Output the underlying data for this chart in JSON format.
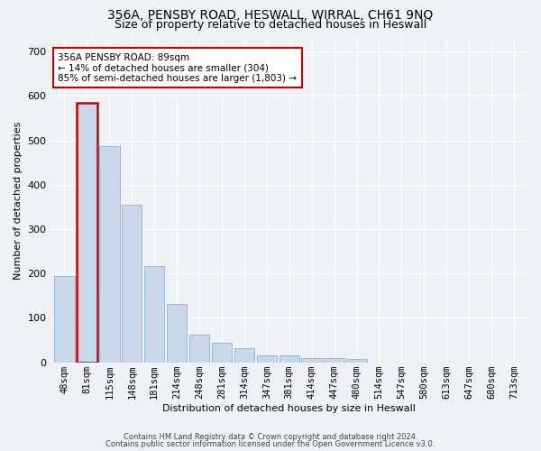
{
  "title": "356A, PENSBY ROAD, HESWALL, WIRRAL, CH61 9NQ",
  "subtitle": "Size of property relative to detached houses in Heswall",
  "xlabel": "Distribution of detached houses by size in Heswall",
  "ylabel": "Number of detached properties",
  "bar_color": "#c8d8ea",
  "bar_edge_color": "#7aaac8",
  "highlight_bar_index": 1,
  "highlight_bar_color": "#cc0000",
  "categories": [
    "48sqm",
    "81sqm",
    "115sqm",
    "148sqm",
    "181sqm",
    "214sqm",
    "248sqm",
    "281sqm",
    "314sqm",
    "347sqm",
    "381sqm",
    "414sqm",
    "447sqm",
    "480sqm",
    "514sqm",
    "547sqm",
    "580sqm",
    "613sqm",
    "647sqm",
    "680sqm",
    "713sqm"
  ],
  "values": [
    195,
    585,
    487,
    355,
    217,
    132,
    63,
    44,
    31,
    16,
    15,
    9,
    10,
    8,
    0,
    0,
    0,
    0,
    0,
    0,
    0
  ],
  "ylim": [
    0,
    730
  ],
  "yticks": [
    0,
    100,
    200,
    300,
    400,
    500,
    600,
    700
  ],
  "annotation_text": "356A PENSBY ROAD: 89sqm\n← 14% of detached houses are smaller (304)\n85% of semi-detached houses are larger (1,803) →",
  "footnote1": "Contains HM Land Registry data © Crown copyright and database right 2024.",
  "footnote2": "Contains public sector information licensed under the Open Government Licence v3.0.",
  "background_color": "#eef2f7",
  "grid_color": "#ffffff",
  "title_fontsize": 10,
  "subtitle_fontsize": 9,
  "ylabel_fontsize": 8,
  "xlabel_fontsize": 8,
  "tick_fontsize": 7.5,
  "ytick_fontsize": 8,
  "annot_fontsize": 7.5,
  "footnote_fontsize": 6
}
